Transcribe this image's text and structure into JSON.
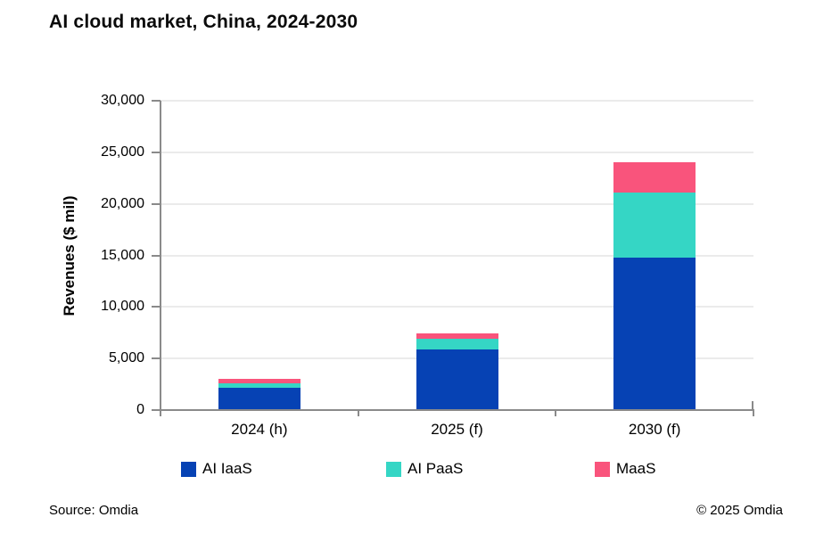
{
  "footer": {
    "source": "Source: Omdia",
    "copyright": "© 2025 Omdia"
  },
  "colors": {
    "axis": "#8a8a8a",
    "gridline": "#ebebeb",
    "text": "#000000",
    "background": "#ffffff"
  },
  "chart_data": {
    "type": "bar",
    "stacked": true,
    "title": "AI cloud market, China, 2024-2030",
    "ylabel": "Revenues ($ mil)",
    "xlabel": "",
    "categories": [
      "2024 (h)",
      "2025 (f)",
      "2030 (f)"
    ],
    "series": [
      {
        "name": "AI IaaS",
        "color": "#0642b4",
        "values": [
          2200,
          5900,
          14800
        ]
      },
      {
        "name": "AI PaaS",
        "color": "#35d6c5",
        "values": [
          420,
          1000,
          6300
        ]
      },
      {
        "name": "MaaS",
        "color": "#f9547c",
        "values": [
          380,
          500,
          2900
        ]
      }
    ],
    "ylim": [
      0,
      30000
    ],
    "ytick_labels": [
      "0",
      "5,000",
      "10,000",
      "15,000",
      "20,000",
      "25,000",
      "30,000"
    ],
    "grid": "horizontal",
    "legend_position": "bottom"
  }
}
